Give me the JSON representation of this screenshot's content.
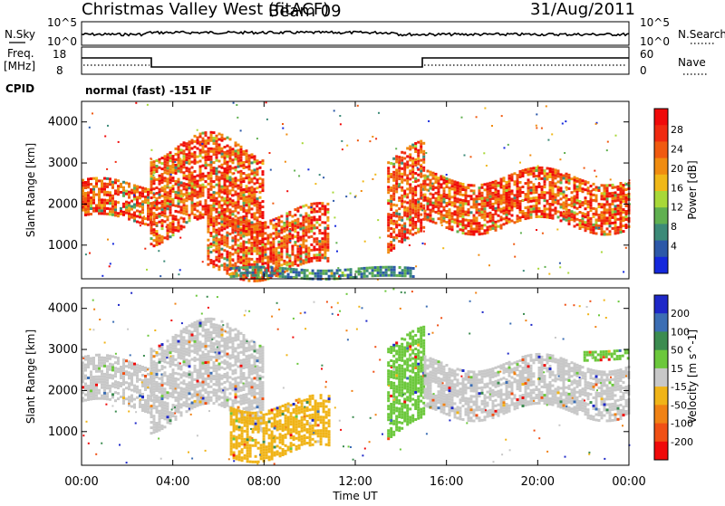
{
  "header": {
    "title": "Christmas Valley West (fitACF)",
    "beam": "Beam 09",
    "date": "31/Aug/2011"
  },
  "strips": {
    "nsky_label": "N.Sky",
    "nsky_ticks": [
      "10^5",
      "10^0"
    ],
    "nsearch_label": "N.Search",
    "nsearch_ticks": [
      "10^5",
      "10^0"
    ],
    "freq_label": "Freq.",
    "freq_unit": "[MHz]",
    "freq_ticks": [
      "18",
      "8"
    ],
    "nave_label": "Nave",
    "nave_ticks": [
      "60",
      "0"
    ],
    "cpid_label": "CPID",
    "cpid_value": "normal (fast) -151 IF"
  },
  "chart_data": [
    {
      "type": "heatmap",
      "panel": "power",
      "ylabel": "Slant Range [km]",
      "xlabel": "Time UT",
      "xlim_hours": [
        0,
        24
      ],
      "ylim_km": [
        180,
        4500
      ],
      "x_ticks": [
        "00:00",
        "04:00",
        "08:00",
        "12:00",
        "16:00",
        "20:00",
        "00:00"
      ],
      "y_ticks": [
        1000,
        2000,
        3000,
        4000
      ],
      "colorbar": {
        "label": "Power [dB]",
        "ticks": [
          "4",
          "8",
          "12",
          "16",
          "20",
          "24",
          "28"
        ],
        "colors": [
          "#1428dc",
          "#2c58a8",
          "#3c8a78",
          "#60b050",
          "#a8d838",
          "#f0b818",
          "#f08c10",
          "#f05a10",
          "#f02a10",
          "#f00a0a"
        ]
      },
      "features": [
        {
          "t_start": 0.0,
          "t_end": 3.0,
          "r_min": 1600,
          "r_max": 2500,
          "level": "high"
        },
        {
          "t_start": 3.0,
          "t_end": 8.0,
          "r_min": 1300,
          "r_max": 3400,
          "level": "high"
        },
        {
          "t_start": 5.5,
          "t_end": 10.8,
          "r_min": 400,
          "r_max": 1800,
          "level": "high"
        },
        {
          "t_start": 13.4,
          "t_end": 15.0,
          "r_min": 1000,
          "r_max": 3200,
          "level": "high"
        },
        {
          "t_start": 15.0,
          "t_end": 24.0,
          "r_min": 1500,
          "r_max": 2700,
          "level": "high"
        },
        {
          "t_start": 6.5,
          "t_end": 14.5,
          "r_min": 200,
          "r_max": 450,
          "level": "low"
        }
      ]
    },
    {
      "type": "heatmap",
      "panel": "velocity",
      "ylabel": "Slant Range [km]",
      "xlabel": "Time UT",
      "xlim_hours": [
        0,
        24
      ],
      "ylim_km": [
        180,
        4500
      ],
      "x_ticks": [
        "00:00",
        "04:00",
        "08:00",
        "12:00",
        "16:00",
        "20:00",
        "00:00"
      ],
      "y_ticks": [
        1000,
        2000,
        3000,
        4000
      ],
      "colorbar": {
        "label": "Velocity [m s^-1]",
        "ticks": [
          "200",
          "100",
          "50",
          "15",
          "-15",
          "-50",
          "-100",
          "-200"
        ],
        "colors": [
          "#1e28c8",
          "#3c6eb4",
          "#3c8c50",
          "#6cc83c",
          "#c8c8c8",
          "#f0b418",
          "#f08214",
          "#f05014",
          "#f00a0a"
        ]
      },
      "features": [
        {
          "t_start": 0.0,
          "t_end": 3.0,
          "r_min": 1600,
          "r_max": 2700,
          "velocity": "near-zero"
        },
        {
          "t_start": 3.0,
          "t_end": 8.0,
          "r_min": 1300,
          "r_max": 3400,
          "velocity": "near-zero"
        },
        {
          "t_start": 6.5,
          "t_end": 10.8,
          "r_min": 500,
          "r_max": 1700,
          "velocity": "negative"
        },
        {
          "t_start": 13.4,
          "t_end": 15.0,
          "r_min": 1000,
          "r_max": 3200,
          "velocity": "positive"
        },
        {
          "t_start": 15.0,
          "t_end": 24.0,
          "r_min": 1500,
          "r_max": 2700,
          "velocity": "near-zero"
        },
        {
          "t_start": 22.0,
          "t_end": 24.0,
          "r_min": 2800,
          "r_max": 3000,
          "velocity": "positive"
        }
      ]
    }
  ]
}
